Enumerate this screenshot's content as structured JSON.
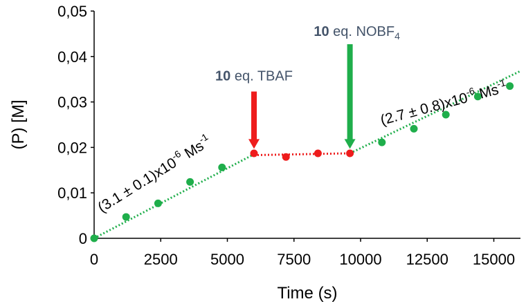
{
  "chart_data": {
    "type": "scatter",
    "xlabel": "Time (s)",
    "ylabel": "(P) [M]",
    "xlim": [
      0,
      16000
    ],
    "ylim": [
      0,
      0.05
    ],
    "x_ticks": [
      0,
      2500,
      5000,
      7500,
      10000,
      12500,
      15000
    ],
    "x_tick_labels": [
      "0",
      "2500",
      "5000",
      "7500",
      "10000",
      "12500",
      "15000"
    ],
    "y_ticks": [
      0,
      0.01,
      0.02,
      0.03,
      0.04,
      0.05
    ],
    "y_tick_labels": [
      "0",
      "0,01",
      "0,02",
      "0,03",
      "0,04",
      "0,05"
    ],
    "grid": false,
    "colors": {
      "green": "#1fae4b",
      "red": "#ee1c1c",
      "gray_text": "#44546a"
    },
    "series": [
      {
        "color": "#1fae4b",
        "x": [
          0,
          1200,
          2400,
          3600,
          4800
        ],
        "y": [
          0.0,
          0.0047,
          0.0077,
          0.0124,
          0.0156
        ]
      },
      {
        "color": "#ee1c1c",
        "x": [
          6000,
          7200,
          8400,
          9600
        ],
        "y": [
          0.0187,
          0.0179,
          0.0187,
          0.0187
        ]
      },
      {
        "color": "#1fae4b",
        "x": [
          10800,
          12000,
          13200,
          14400,
          15600
        ],
        "y": [
          0.0211,
          0.0241,
          0.0272,
          0.0312,
          0.0335
        ]
      }
    ],
    "trendlines": [
      {
        "color": "#1fae4b",
        "x": [
          0,
          6000
        ],
        "y": [
          0.0,
          0.0185
        ]
      },
      {
        "color": "#ee1c1c",
        "x": [
          6000,
          9600
        ],
        "y": [
          0.0183,
          0.0187
        ]
      },
      {
        "color": "#1fae4b",
        "x": [
          9600,
          16000
        ],
        "y": [
          0.0187,
          0.0368
        ]
      }
    ],
    "annotations": {
      "tbaf": {
        "bold": "10",
        "text": " eq. TBAF",
        "arrow_x": 6000,
        "arrow_top_y": 0.0323,
        "arrow_tip_y": 0.0197,
        "color": "#ee1c1c"
      },
      "nobf": {
        "bold": "10",
        "text": " eq. NOBF",
        "sub": "4",
        "arrow_x": 9600,
        "arrow_top_y": 0.0427,
        "arrow_tip_y": 0.0197,
        "color": "#1fae4b"
      },
      "rate1": {
        "prefix": "(3.1 ± 0.1)x10",
        "exp": "-6",
        "unit": " Ms",
        "unit_exp": "-1",
        "anchor_x": 180,
        "anchor_y": 0.0047,
        "angle_deg": -32
      },
      "rate2": {
        "prefix": "(2.7 ± 0.8)x10",
        "exp": "-6",
        "unit": " Ms",
        "unit_exp": "-1",
        "anchor_x": 10700,
        "anchor_y": 0.024,
        "angle_deg": -15
      }
    }
  }
}
